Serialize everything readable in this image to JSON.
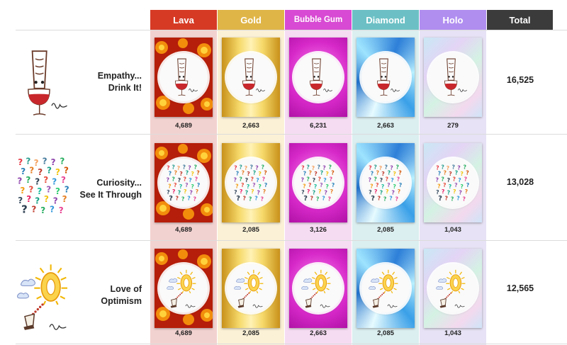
{
  "columns": [
    {
      "label": "Lava",
      "color": "#d63a25",
      "tint": "#f2d2d0"
    },
    {
      "label": "Gold",
      "color": "#e0b548",
      "tint": "#fbf1d6"
    },
    {
      "label": "Bubble Gum",
      "color": "#d84ad3",
      "tint": "#f6dcf3"
    },
    {
      "label": "Diamond",
      "color": "#6cc0c5",
      "tint": "#dbeef0"
    },
    {
      "label": "Holo",
      "color": "#b08ef0",
      "tint": "#e7e2f5"
    }
  ],
  "total_header": {
    "label": "Total",
    "color": "#3b3b3b"
  },
  "rows": [
    {
      "title_line1": "Empathy...",
      "title_line2": "Drink It!",
      "art_icon": "wine-glass-icon",
      "counts": [
        "4,689",
        "2,663",
        "6,231",
        "2,663",
        "279"
      ],
      "total": "16,525"
    },
    {
      "title_line1": "Curiosity...",
      "title_line2": "See It Through",
      "art_icon": "question-marks-icon",
      "counts": [
        "4,689",
        "2,085",
        "3,126",
        "2,085",
        "1,043"
      ],
      "total": "13,028"
    },
    {
      "title_line1": "Love of",
      "title_line2": "Optimism",
      "art_icon": "sun-zero-icon",
      "counts": [
        "4,689",
        "2,085",
        "2,663",
        "2,085",
        "1,043"
      ],
      "total": "12,565"
    }
  ]
}
